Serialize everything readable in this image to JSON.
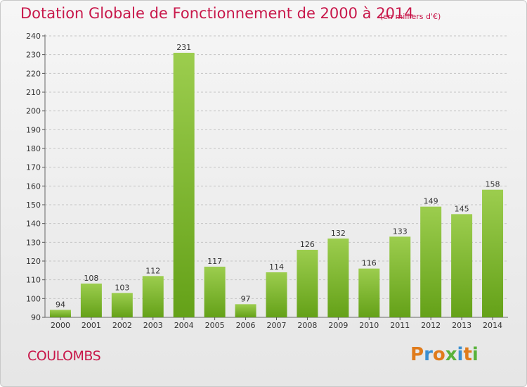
{
  "header": {
    "title": "Dotation Globale de Fonctionnement de 2000 à 2014",
    "subtitle": "(en milliers d'€)"
  },
  "footer": {
    "commune": "COULOMBS",
    "logo": "Proxiti"
  },
  "colors": {
    "title": "#c8174a",
    "bar_light": "#9ccd4e",
    "bar_dark": "#64a118",
    "logo": [
      "#e07b1b",
      "#3a8fd1",
      "#e07b1b",
      "#58b23a",
      "#3a8fd1",
      "#e07b1b",
      "#58b23a"
    ]
  },
  "chart_data": {
    "type": "bar",
    "categories": [
      "2000",
      "2001",
      "2002",
      "2003",
      "2004",
      "2005",
      "2006",
      "2007",
      "2008",
      "2009",
      "2010",
      "2011",
      "2012",
      "2013",
      "2014"
    ],
    "values": [
      94,
      108,
      103,
      112,
      231,
      117,
      97,
      114,
      126,
      132,
      116,
      133,
      149,
      145,
      158
    ],
    "ylim": [
      90,
      240
    ],
    "yticks": [
      90,
      100,
      110,
      120,
      130,
      140,
      150,
      160,
      170,
      180,
      190,
      200,
      210,
      220,
      230,
      240
    ],
    "xlabel": "",
    "ylabel": "",
    "grid": "horizontal dashed"
  }
}
